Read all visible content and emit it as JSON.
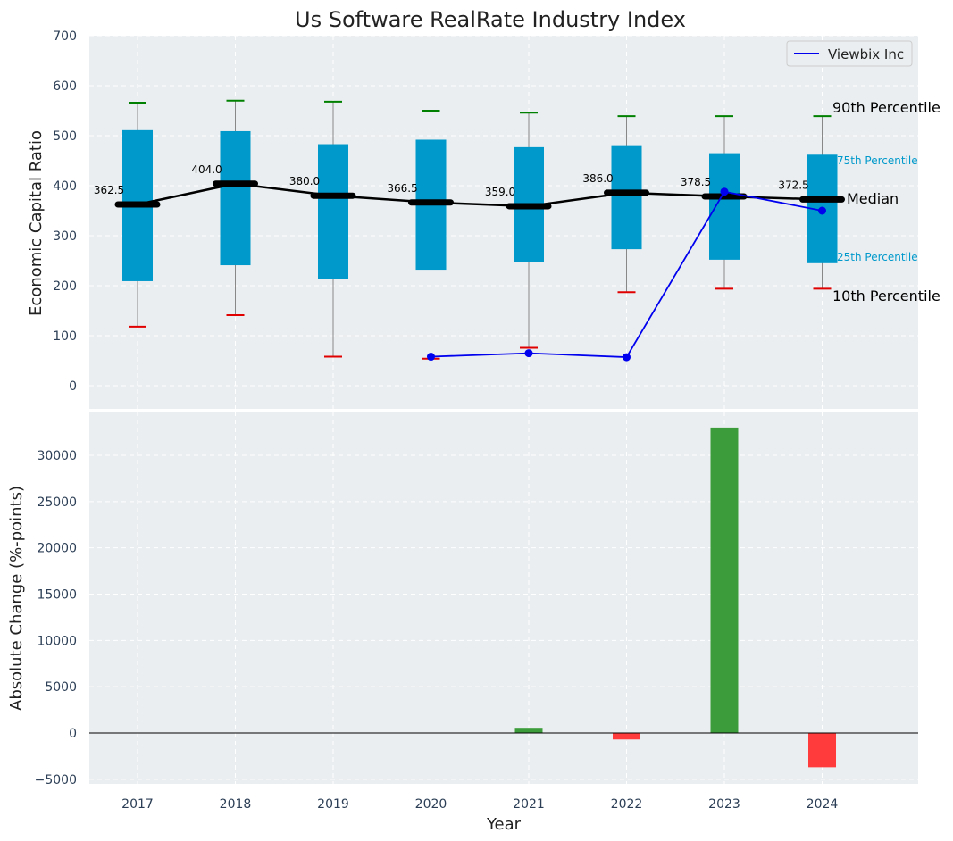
{
  "chart_data": [
    {
      "type": "box",
      "title": "Us Software RealRate Industry Index",
      "ylabel": "Economic Capital Ratio",
      "ylim": [
        -50,
        700
      ],
      "yticks": [
        0,
        100,
        200,
        300,
        400,
        500,
        600,
        700
      ],
      "categories": [
        "2017",
        "2018",
        "2019",
        "2020",
        "2021",
        "2022",
        "2023",
        "2024"
      ],
      "grid": true,
      "legend_position": "top-right",
      "percentiles": {
        "p10": [
          118,
          141,
          58,
          54,
          76,
          187,
          194,
          194
        ],
        "p25": [
          209,
          241,
          214,
          232,
          248,
          273,
          252,
          245
        ],
        "median": [
          362.5,
          404.0,
          380.0,
          366.5,
          359.0,
          386.0,
          378.5,
          372.5
        ],
        "p75": [
          511,
          509,
          483,
          492,
          477,
          481,
          465,
          462
        ],
        "p90": [
          566,
          570,
          568,
          550,
          546,
          539,
          539,
          539
        ]
      },
      "median_labels": [
        "362.5",
        "404.0",
        "380.0",
        "366.5",
        "359.0",
        "386.0",
        "378.5",
        "372.5"
      ],
      "series": [
        {
          "name": "Viewbix Inc",
          "x": [
            "2020",
            "2021",
            "2022",
            "2023",
            "2024"
          ],
          "values": [
            58,
            65,
            57,
            388,
            350
          ]
        }
      ],
      "annotations": {
        "p90": "90th Percentile",
        "p75": "75th Percentile",
        "median": "Median",
        "p25": "25th Percentile",
        "p10": "10th Percentile"
      }
    },
    {
      "type": "bar",
      "xlabel": "Year",
      "ylabel": "Absolute Change (%-points)",
      "ylim": [
        -5500,
        34500
      ],
      "yticks": [
        -5000,
        0,
        5000,
        10000,
        15000,
        20000,
        25000,
        30000
      ],
      "ytick_labels": [
        "−5000",
        "0",
        "5000",
        "10000",
        "15000",
        "20000",
        "25000",
        "30000"
      ],
      "categories": [
        "2017",
        "2018",
        "2019",
        "2020",
        "2021",
        "2022",
        "2023",
        "2024"
      ],
      "bars": [
        {
          "x": "2021",
          "value": 560
        },
        {
          "x": "2022",
          "value": -700
        },
        {
          "x": "2023",
          "value": 33000
        },
        {
          "x": "2024",
          "value": -3700
        }
      ],
      "grid": true
    }
  ],
  "colors": {
    "box_fill": "#0099cc",
    "panel_bg": "#eaeef0",
    "median_line": "#000000",
    "series_line": "#0000ee",
    "p90_cap": "#008000",
    "p10_cap": "#e00000",
    "positive_bar": "#3c9c3c",
    "negative_bar": "#ff3b3b",
    "tick_text": "#2b3e55",
    "annotation_small": "#0099cc"
  }
}
